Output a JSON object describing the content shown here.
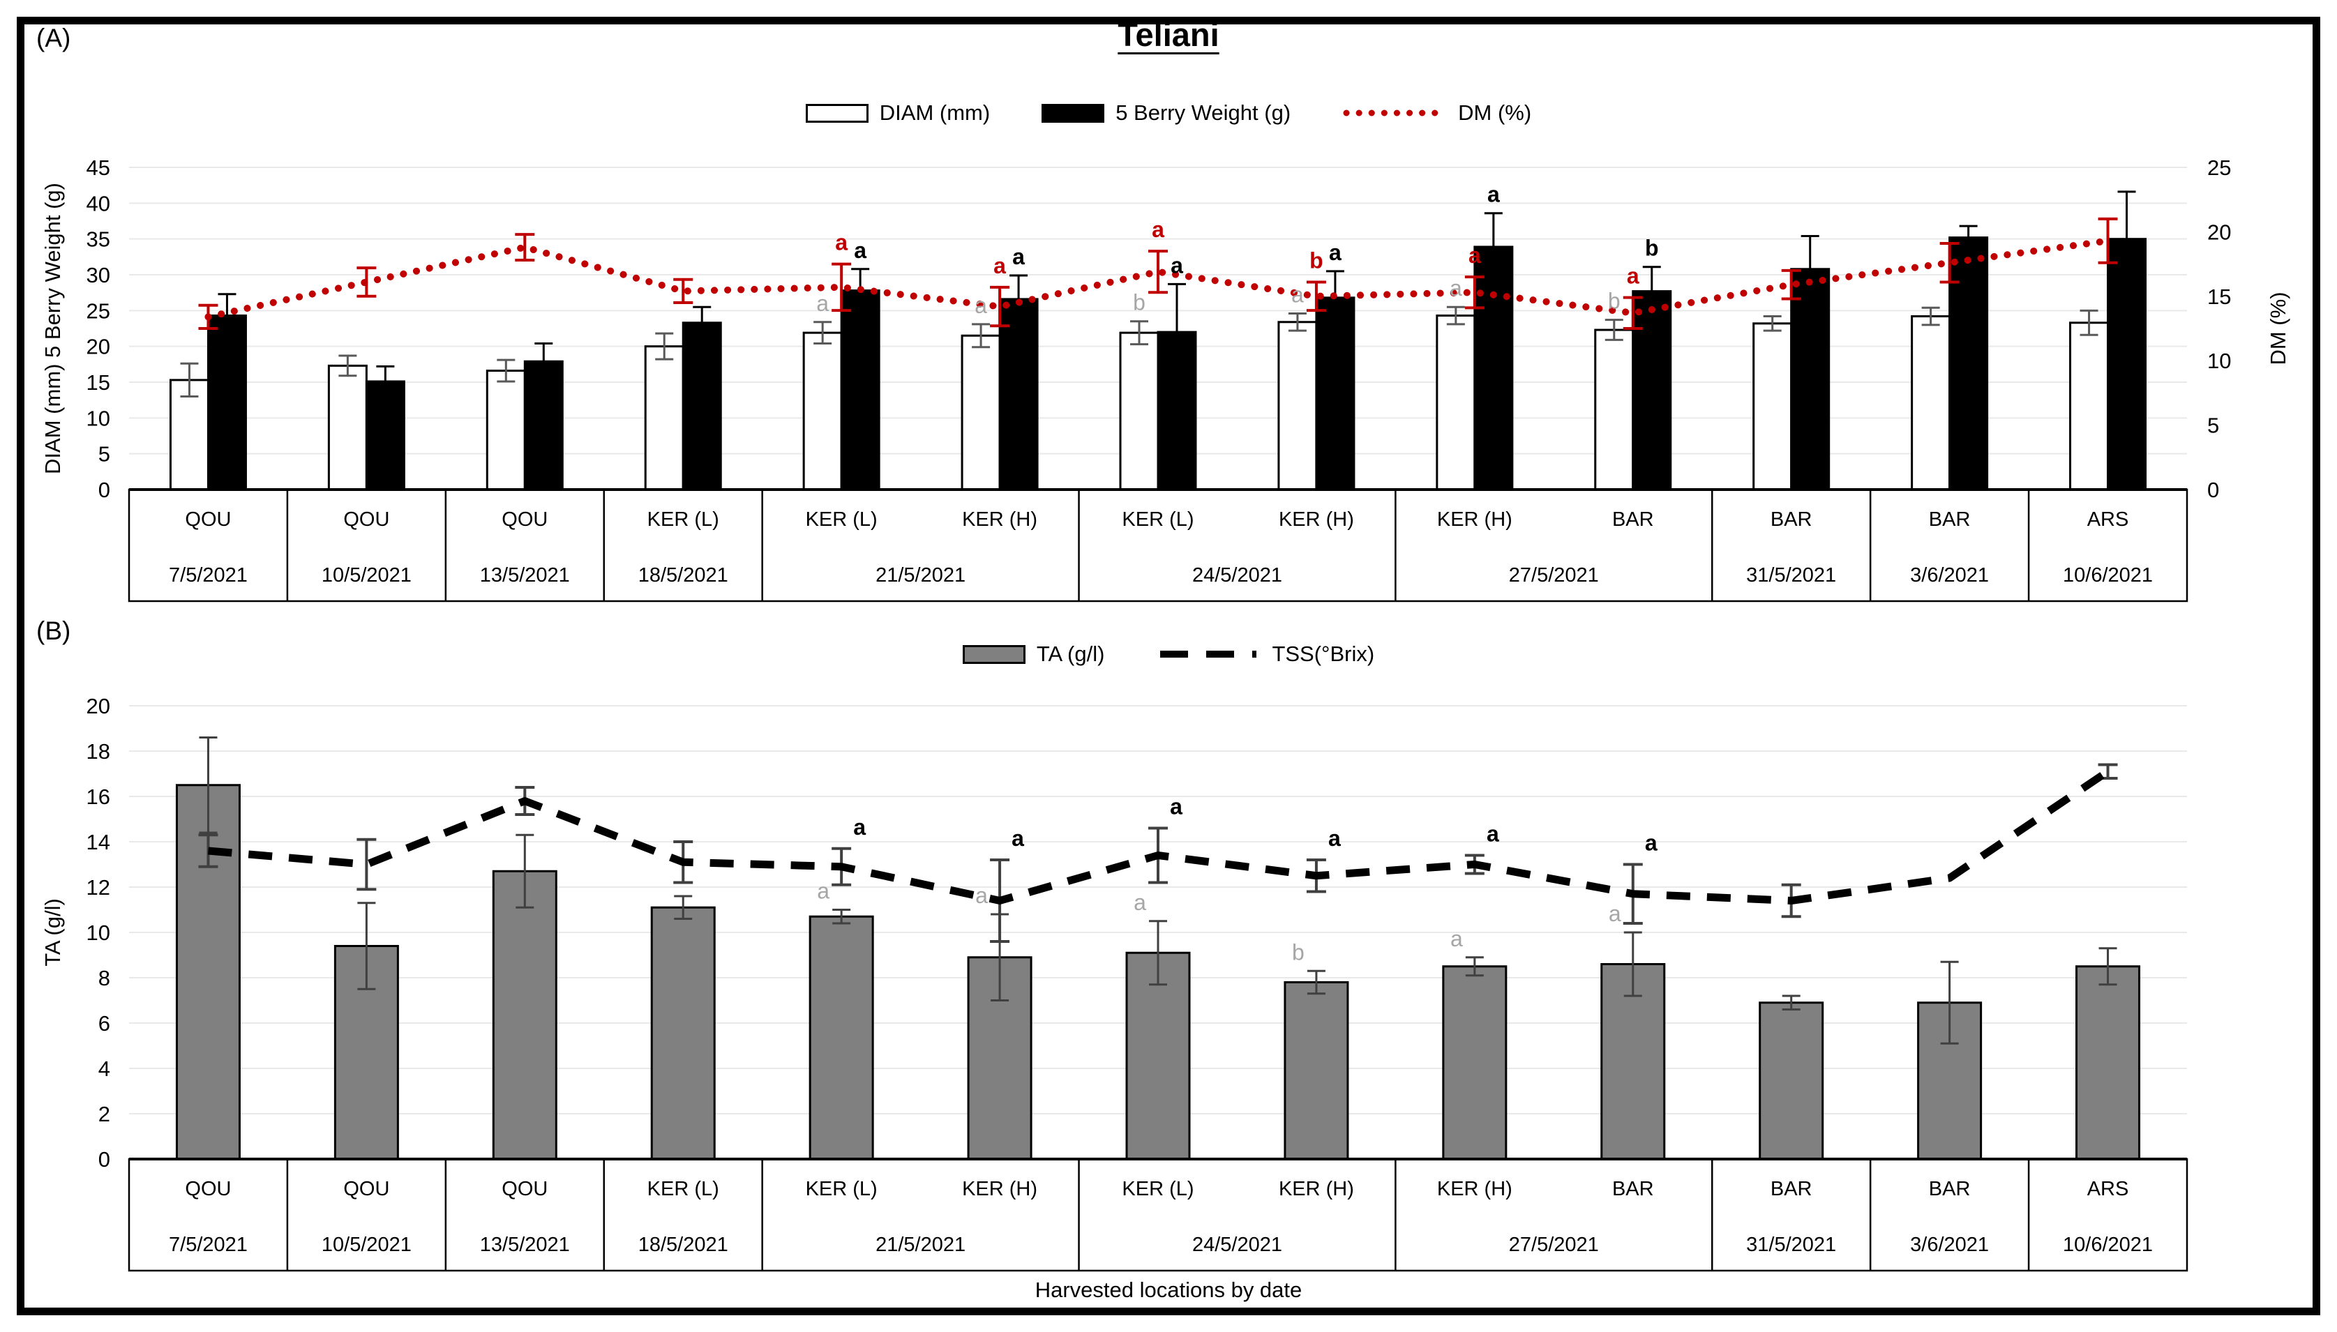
{
  "figure": {
    "panel_a_label": "(A)",
    "panel_b_label": "(B)",
    "title": "Teliani",
    "x_axis_title": "Harvested locations by date"
  },
  "colors": {
    "accent_red": "#c00000",
    "bar_white": "#ffffff",
    "bar_black": "#000000",
    "bar_gray": "#808080",
    "line_black": "#000000",
    "letter_gray": "#a6a6a6",
    "letter_black": "#000000",
    "err_gray": "#595959",
    "err_dark": "#404040",
    "grid": "#e9e9e9"
  },
  "chart_data": [
    {
      "id": "A",
      "type": "bar",
      "title": "Teliani",
      "ylabel_left": "DIAM (mm) 5 Berry Weight (g)",
      "ylabel_right": "DM (%)",
      "ylim_left": [
        0,
        45
      ],
      "ytick_step_left": 5,
      "ylim_right": [
        0,
        25
      ],
      "ytick_step_right": 5,
      "grid": true,
      "legend_position": "top",
      "legend": [
        {
          "key": "diam",
          "label": "DIAM (mm)",
          "swatch": "open-bar"
        },
        {
          "key": "bw",
          "label": "5 Berry Weight (g)",
          "swatch": "filled-bar"
        },
        {
          "key": "dm",
          "label": "DM (%)",
          "swatch": "red-dotted-line"
        }
      ],
      "categories": [
        {
          "location": "QOU",
          "date": "7/5/2021"
        },
        {
          "location": "QOU",
          "date": "10/5/2021"
        },
        {
          "location": "QOU",
          "date": "13/5/2021"
        },
        {
          "location": "KER (L)",
          "date": "18/5/2021"
        },
        {
          "location": "KER (L)",
          "date": "21/5/2021"
        },
        {
          "location": "KER (H)",
          "date": "21/5/2021"
        },
        {
          "location": "KER (L)",
          "date": "24/5/2021"
        },
        {
          "location": "KER (H)",
          "date": "24/5/2021"
        },
        {
          "location": "KER (H)",
          "date": "27/5/2021"
        },
        {
          "location": "BAR",
          "date": "27/5/2021"
        },
        {
          "location": "BAR",
          "date": "31/5/2021"
        },
        {
          "location": "BAR",
          "date": "3/6/2021"
        },
        {
          "location": "ARS",
          "date": "10/6/2021"
        }
      ],
      "date_groups": [
        {
          "date": "7/5/2021",
          "span": 1
        },
        {
          "date": "10/5/2021",
          "span": 1
        },
        {
          "date": "13/5/2021",
          "span": 1
        },
        {
          "date": "18/5/2021",
          "span": 1
        },
        {
          "date": "21/5/2021",
          "span": 2
        },
        {
          "date": "24/5/2021",
          "span": 2
        },
        {
          "date": "27/5/2021",
          "span": 2
        },
        {
          "date": "31/5/2021",
          "span": 1
        },
        {
          "date": "3/6/2021",
          "span": 1
        },
        {
          "date": "10/6/2021",
          "span": 1
        }
      ],
      "series": [
        {
          "name": "DIAM (mm)",
          "key": "diam",
          "axis": "left",
          "style": "open-bar",
          "values": [
            15.3,
            17.3,
            16.6,
            20.0,
            21.9,
            21.5,
            21.9,
            23.4,
            24.3,
            22.3,
            23.2,
            24.2,
            23.3
          ],
          "errors": [
            2.3,
            1.4,
            1.5,
            1.8,
            1.5,
            1.6,
            1.6,
            1.2,
            1.2,
            1.4,
            1.0,
            1.2,
            1.7
          ],
          "letters": [
            null,
            null,
            null,
            null,
            "a",
            "a",
            "b",
            "a",
            "a",
            "b",
            null,
            null,
            null
          ]
        },
        {
          "name": "5 Berry Weight (g)",
          "key": "bw",
          "axis": "left",
          "style": "filled-bar",
          "values": [
            24.3,
            15.1,
            17.9,
            23.3,
            27.8,
            26.6,
            22.0,
            26.8,
            33.9,
            27.7,
            30.8,
            35.2,
            35.0
          ],
          "errors": [
            3.0,
            2.1,
            2.5,
            2.2,
            3.0,
            3.3,
            6.7,
            3.7,
            4.7,
            3.4,
            4.6,
            1.6,
            6.6
          ],
          "letters": [
            null,
            null,
            null,
            null,
            "a",
            "a",
            "a",
            "a",
            "a",
            "b",
            null,
            null,
            null
          ]
        },
        {
          "name": "DM (%)",
          "key": "dm",
          "axis": "right",
          "style": "red-dotted-line",
          "values": [
            13.4,
            16.1,
            18.8,
            15.4,
            15.7,
            14.2,
            16.9,
            15.0,
            15.3,
            13.7,
            15.9,
            17.6,
            19.3
          ],
          "errors": [
            0.9,
            1.1,
            1.0,
            0.9,
            1.8,
            1.5,
            1.6,
            1.1,
            1.2,
            1.2,
            1.1,
            1.5,
            1.7
          ],
          "letters": [
            null,
            null,
            null,
            null,
            "a",
            "a",
            "a",
            "b",
            "a",
            "a",
            null,
            null,
            null
          ]
        }
      ]
    },
    {
      "id": "B",
      "type": "bar",
      "ylabel_left": "TA (g/l)",
      "ylim_left": [
        0,
        20
      ],
      "ytick_step_left": 2,
      "grid": true,
      "legend_position": "top",
      "xlabel": "Harvested locations by date",
      "legend": [
        {
          "key": "ta",
          "label": "TA (g/l)",
          "swatch": "gray-bar"
        },
        {
          "key": "tss",
          "label": "TSS(°Brix)",
          "swatch": "black-dashed-line"
        }
      ],
      "categories": [
        {
          "location": "QOU",
          "date": "7/5/2021"
        },
        {
          "location": "QOU",
          "date": "10/5/2021"
        },
        {
          "location": "QOU",
          "date": "13/5/2021"
        },
        {
          "location": "KER (L)",
          "date": "18/5/2021"
        },
        {
          "location": "KER (L)",
          "date": "21/5/2021"
        },
        {
          "location": "KER (H)",
          "date": "21/5/2021"
        },
        {
          "location": "KER (L)",
          "date": "24/5/2021"
        },
        {
          "location": "KER (H)",
          "date": "24/5/2021"
        },
        {
          "location": "KER (H)",
          "date": "27/5/2021"
        },
        {
          "location": "BAR",
          "date": "27/5/2021"
        },
        {
          "location": "BAR",
          "date": "31/5/2021"
        },
        {
          "location": "BAR",
          "date": "3/6/2021"
        },
        {
          "location": "ARS",
          "date": "10/6/2021"
        }
      ],
      "date_groups": [
        {
          "date": "7/5/2021",
          "span": 1
        },
        {
          "date": "10/5/2021",
          "span": 1
        },
        {
          "date": "13/5/2021",
          "span": 1
        },
        {
          "date": "18/5/2021",
          "span": 1
        },
        {
          "date": "21/5/2021",
          "span": 2
        },
        {
          "date": "24/5/2021",
          "span": 2
        },
        {
          "date": "27/5/2021",
          "span": 2
        },
        {
          "date": "31/5/2021",
          "span": 1
        },
        {
          "date": "3/6/2021",
          "span": 1
        },
        {
          "date": "10/6/2021",
          "span": 1
        }
      ],
      "series": [
        {
          "name": "TA (g/l)",
          "key": "ta",
          "axis": "left",
          "style": "gray-bar",
          "values": [
            16.5,
            9.4,
            12.7,
            11.1,
            10.7,
            8.9,
            9.1,
            7.8,
            8.5,
            8.6,
            6.9,
            6.9,
            8.5
          ],
          "errors": [
            2.1,
            1.9,
            1.6,
            0.5,
            0.3,
            1.9,
            1.4,
            0.5,
            0.4,
            1.4,
            0.3,
            1.8,
            0.8
          ],
          "letters": [
            null,
            null,
            null,
            null,
            "a",
            "a",
            "a",
            "b",
            "a",
            "a",
            null,
            null,
            null
          ]
        },
        {
          "name": "TSS(°Brix)",
          "key": "tss",
          "axis": "left",
          "style": "black-dashed-line",
          "values": [
            13.6,
            13.0,
            15.8,
            13.1,
            12.9,
            11.4,
            13.4,
            12.5,
            13.0,
            11.7,
            11.4,
            12.4,
            17.1
          ],
          "errors": [
            0.7,
            1.1,
            0.6,
            0.9,
            0.8,
            1.8,
            1.2,
            0.7,
            0.4,
            1.3,
            0.7,
            0,
            0.3
          ],
          "letters": [
            null,
            null,
            null,
            null,
            "a",
            "a",
            "a",
            "a",
            "a",
            "a",
            null,
            null,
            null
          ]
        }
      ]
    }
  ]
}
